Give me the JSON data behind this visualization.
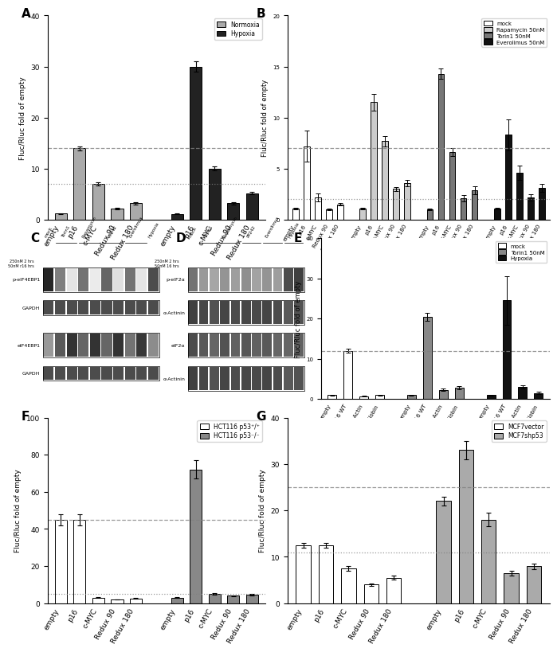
{
  "panelA": {
    "ylabel": "Fluc/Rluc fold of empty",
    "ylim": [
      0,
      40
    ],
    "yticks": [
      0,
      10,
      20,
      30,
      40
    ],
    "dashed_line": 14.0,
    "dotted_line": 7.0,
    "group1_cats": [
      "empty",
      "p16",
      "c-MYC",
      "Redux 90",
      "Redux 180"
    ],
    "group1_vals": [
      1.2,
      14.0,
      7.0,
      2.2,
      3.2
    ],
    "group1_errs": [
      0.1,
      0.4,
      0.3,
      0.2,
      0.2
    ],
    "group2_cats": [
      "empty",
      "p16",
      "c-MYC",
      "Redux 90",
      "Redux 180"
    ],
    "group2_vals": [
      1.1,
      30.0,
      10.0,
      3.2,
      5.2
    ],
    "group2_errs": [
      0.1,
      1.0,
      0.4,
      0.2,
      0.3
    ],
    "color1": "#aaaaaa",
    "color2": "#222222",
    "legend_labels": [
      "Normoxia",
      "Hypoxia"
    ],
    "legend_colors": [
      "#aaaaaa",
      "#222222"
    ]
  },
  "panelB": {
    "ylabel": "Fluc/Rluc fold of empty",
    "ylim": [
      0,
      20
    ],
    "yticks": [
      0,
      5,
      10,
      15,
      20
    ],
    "dashed_line": 7.0,
    "dotted_line": 2.0,
    "groups": [
      {
        "label": "mock",
        "color": "#ffffff",
        "vals": [
          1.1,
          7.2,
          2.2,
          1.0,
          1.5
        ],
        "errs": [
          0.1,
          1.5,
          0.4,
          0.1,
          0.1
        ]
      },
      {
        "label": "Rapamycin 50nM",
        "color": "#cccccc",
        "vals": [
          1.1,
          11.5,
          7.7,
          3.0,
          3.6
        ],
        "errs": [
          0.1,
          0.8,
          0.5,
          0.2,
          0.3
        ]
      },
      {
        "label": "Torin1 50nM",
        "color": "#777777",
        "vals": [
          1.0,
          14.3,
          6.6,
          2.1,
          2.9
        ],
        "errs": [
          0.1,
          0.5,
          0.4,
          0.3,
          0.4
        ]
      },
      {
        "label": "Everolimus 50nM",
        "color": "#111111",
        "vals": [
          1.1,
          8.3,
          4.6,
          2.2,
          3.1
        ],
        "errs": [
          0.1,
          1.5,
          0.7,
          0.3,
          0.4
        ]
      }
    ],
    "cats": [
      "empty",
      "p16",
      "c-MYC",
      "Redux 90",
      "Redux 180"
    ]
  },
  "panelE": {
    "ylabel": "Fluc/Rluc fold of empty",
    "ylim": [
      0,
      40
    ],
    "yticks": [
      0,
      10,
      20,
      30,
      40
    ],
    "dashed_line": 12.0,
    "groups": [
      {
        "label": "mock",
        "color": "#ffffff",
        "vals": [
          1.0,
          12.0,
          0.7,
          1.0
        ],
        "errs": [
          0.1,
          0.5,
          0.05,
          0.1
        ]
      },
      {
        "label": "Torin1 50nM",
        "color": "#888888",
        "vals": [
          1.0,
          20.5,
          2.3,
          2.8
        ],
        "errs": [
          0.1,
          1.0,
          0.3,
          0.4
        ]
      },
      {
        "label": "Hypoxia",
        "color": "#111111",
        "vals": [
          1.0,
          24.5,
          3.0,
          1.5
        ],
        "errs": [
          0.1,
          6.0,
          0.4,
          0.3
        ]
      }
    ],
    "cats": [
      "empty",
      "p16 WT",
      "β-Actin",
      "β-Globin"
    ]
  },
  "panelF": {
    "ylabel": "Fluc/Rluc fold of empty",
    "ylim": [
      0,
      100
    ],
    "yticks": [
      0,
      20,
      40,
      60,
      80,
      100
    ],
    "dashed_line": 45.0,
    "dotted_line": 5.0,
    "group1_cats": [
      "empty",
      "p16",
      "c-MYC",
      "Redux 90",
      "Redux 180"
    ],
    "group1_vals": [
      45.0,
      45.0,
      3.0,
      2.0,
      2.5
    ],
    "group1_errs": [
      3.0,
      3.0,
      0.3,
      0.2,
      0.2
    ],
    "group2_cats": [
      "empty",
      "p16",
      "c-MYC",
      "Redux 90",
      "Redux 180"
    ],
    "group2_vals": [
      3.0,
      72.0,
      5.0,
      4.0,
      4.5
    ],
    "group2_errs": [
      0.3,
      5.0,
      0.5,
      0.3,
      0.4
    ],
    "color1": "#ffffff",
    "color2": "#888888",
    "legend_labels": [
      "HCT116 p53⁺/⁺",
      "HCT116 p53⁻/⁻"
    ],
    "legend_colors": [
      "#ffffff",
      "#888888"
    ]
  },
  "panelG": {
    "ylabel": "Fluc/Rluc fold of empty",
    "ylim": [
      0,
      40
    ],
    "yticks": [
      0,
      10,
      20,
      30,
      40
    ],
    "dashed_line": 25.0,
    "dotted_line": 11.0,
    "group1_cats": [
      "empty",
      "p16",
      "c-MYC",
      "Redux 90",
      "Redux 180"
    ],
    "group1_vals": [
      12.5,
      12.5,
      7.5,
      4.0,
      5.5
    ],
    "group1_errs": [
      0.5,
      0.5,
      0.5,
      0.3,
      0.4
    ],
    "group2_cats": [
      "empty",
      "p16",
      "c-MYC",
      "Redux 90",
      "Redux 180"
    ],
    "group2_vals": [
      22.0,
      33.0,
      18.0,
      6.5,
      8.0
    ],
    "group2_errs": [
      1.0,
      2.0,
      1.5,
      0.5,
      0.6
    ],
    "color1": "#ffffff",
    "color2": "#aaaaaa",
    "legend_labels": [
      "MCF7vector",
      "MCF7shp53"
    ],
    "legend_colors": [
      "#ffffff",
      "#aaaaaa"
    ]
  },
  "wb_C": {
    "row_labels": [
      "p-eIF4EBP1",
      "GAPDH",
      "eIF4EBP1",
      "GAPDH"
    ],
    "col_group_labels": [
      "mock",
      "Torin1",
      "Rapamycin",
      "PP242",
      "Everolimus",
      "Hypoxia"
    ],
    "n_lanes_per_group": [
      1,
      2,
      2,
      2,
      2,
      1
    ],
    "sub_row_labels": [
      "250nM 2 hrs",
      "50nM r16 hrs"
    ],
    "signs_250": [
      "-",
      "+",
      "-",
      "+",
      "-",
      "+",
      "-",
      "+",
      "-",
      "+"
    ],
    "signs_50": [
      "-",
      "+",
      "+",
      "+",
      "+",
      "+",
      "+",
      "+",
      "+",
      "-"
    ]
  },
  "wb_D": {
    "row_labels": [
      "p-eIF2α",
      "α-Actinin",
      "eIF2α",
      "α-Actinin"
    ],
    "col_group_labels": [
      "mock",
      "Torin1",
      "Rapamycin",
      "PP242",
      "Everolimus",
      "Hypoxia"
    ],
    "n_lanes_per_group": [
      1,
      2,
      2,
      2,
      2,
      2
    ],
    "sub_row_labels": [
      "250nM 2 hrs",
      "50nM 16 hrs"
    ]
  }
}
